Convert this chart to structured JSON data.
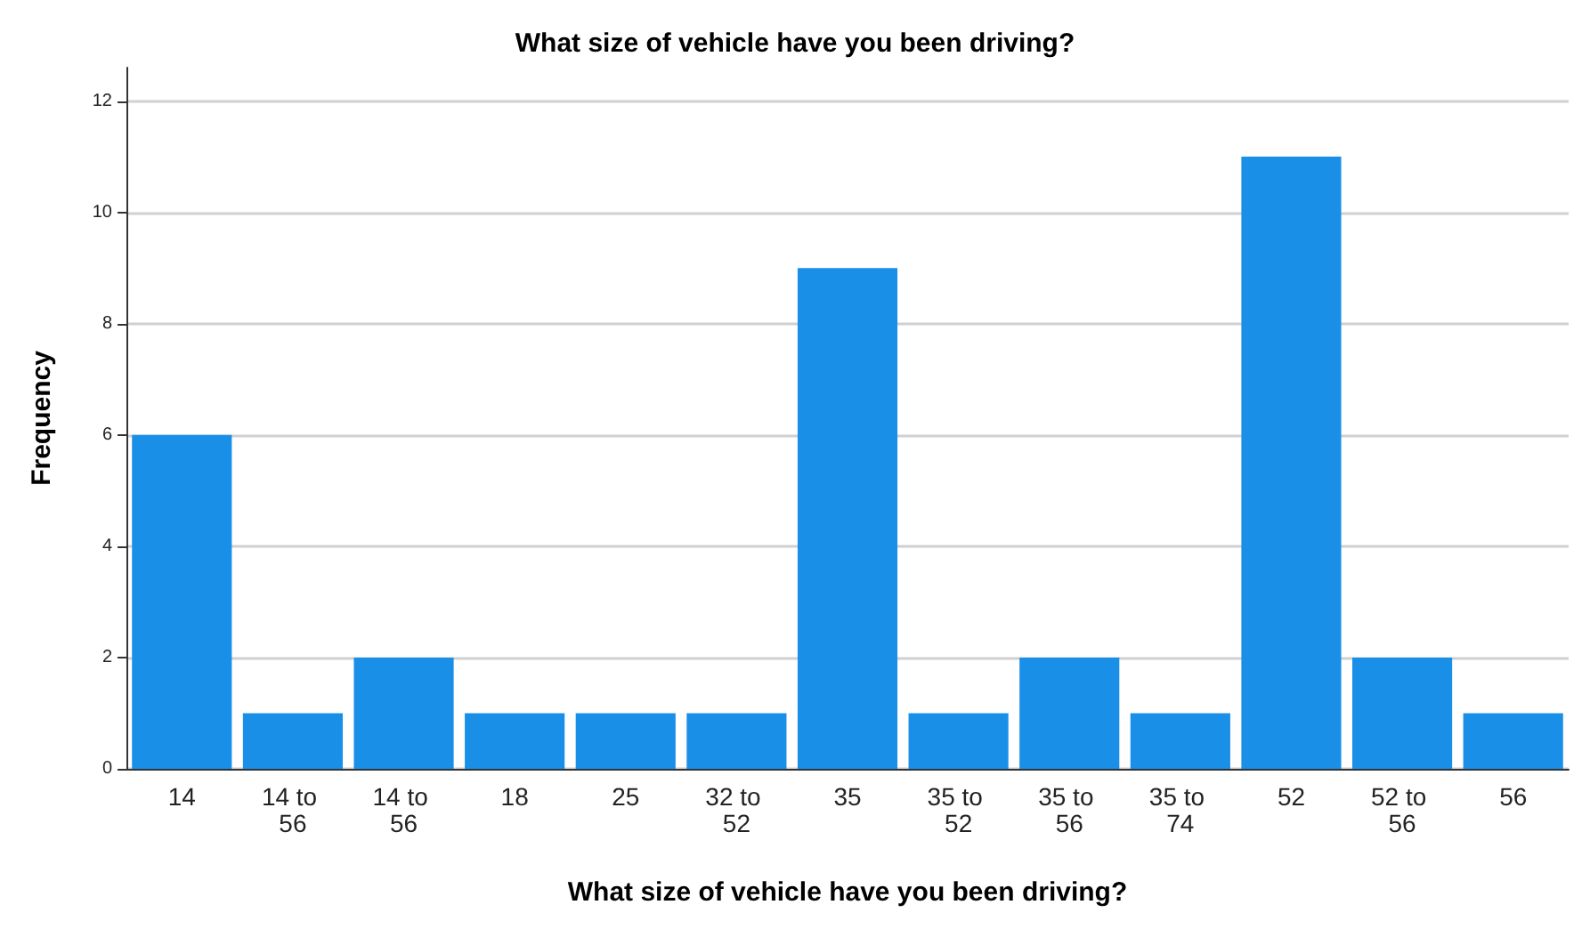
{
  "chart_data": {
    "type": "bar",
    "title": "What size of vehicle have you been driving?",
    "xlabel": "What size of vehicle have you been driving?",
    "ylabel": "Frequency",
    "categories": [
      "14",
      "14 to 56",
      "14 to 56",
      "18",
      "25",
      "32 to 52",
      "35",
      "35 to 52",
      "35 to 56",
      "35 to 74",
      "52",
      "52 to 56",
      "56"
    ],
    "values": [
      6,
      1,
      2,
      1,
      1,
      1,
      9,
      1,
      2,
      1,
      11,
      2,
      1
    ],
    "color": "#1a8fe8",
    "ylim": [
      0,
      12.6
    ],
    "yticks": [
      0,
      2,
      4,
      6,
      8,
      10,
      12
    ],
    "grid": "y"
  }
}
